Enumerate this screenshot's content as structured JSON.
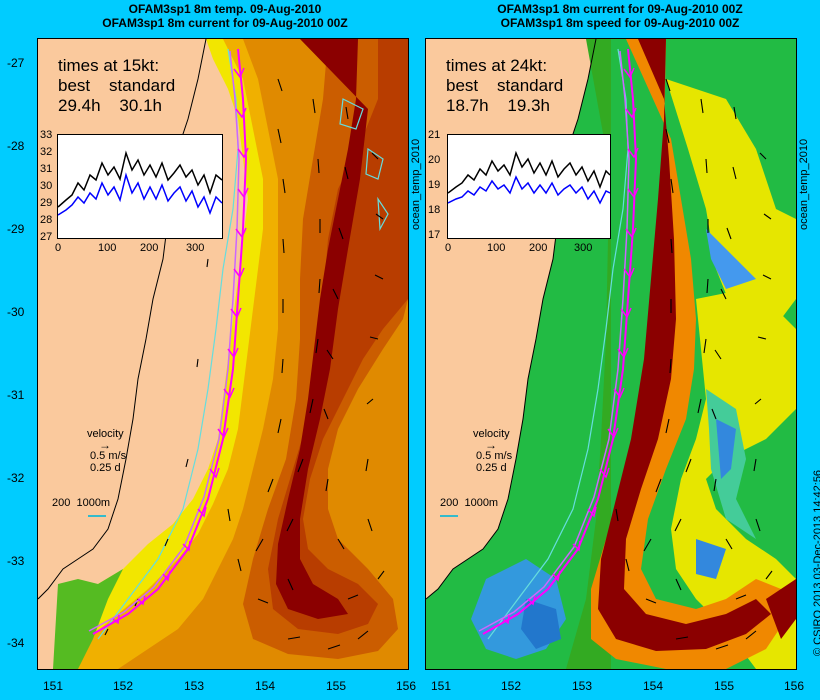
{
  "left_panel": {
    "title_line1": "OFAM3sp1 8m temp. 09-Aug-2010",
    "title_line2": "OFAM3sp1 8m current for 09-Aug-2010 00Z",
    "times_heading": "times at 15kt:",
    "times_header": "best    standard",
    "times_values": "29.4h    30.1h",
    "inset_y_ticks": [
      "33",
      "32",
      "31",
      "30",
      "29",
      "28",
      "27"
    ],
    "inset_x_ticks": [
      "0",
      "100",
      "200",
      "300"
    ],
    "colorbar_label": "ocean_temp_2010",
    "velocity_label": "velocity",
    "velocity_speed": "0.5 m/s",
    "velocity_time": "0.25 d",
    "contour_legend": "200  1000m"
  },
  "right_panel": {
    "title_line1": "OFAM3sp1 8m current for 09-Aug-2010 00Z",
    "title_line2": "OFAM3sp1 8m speed for 09-Aug-2010 00Z",
    "times_heading": "times at 24kt:",
    "times_header": "best    standard",
    "times_values": "18.7h    19.3h",
    "inset_y_ticks": [
      "21",
      "20",
      "19",
      "18",
      "17"
    ],
    "inset_x_ticks": [
      "0",
      "100",
      "200",
      "300"
    ],
    "colorbar_label": "ocean_temp_2010",
    "velocity_label": "velocity",
    "velocity_speed": "0.5 m/s",
    "velocity_time": "0.25 d",
    "contour_legend": "200  1000m"
  },
  "axes": {
    "lat_ticks": [
      "-27",
      "-28",
      "-29",
      "-30",
      "-31",
      "-32",
      "-33",
      "-34"
    ],
    "lon_ticks": [
      "151",
      "152",
      "153",
      "154",
      "155",
      "156"
    ]
  },
  "credit": "© CSIRO 2013  03-Dec-2013 14:42:56",
  "colors": {
    "background": "#00ccff",
    "land": "#f9c89b",
    "route_best": "#ff00ff",
    "route_standard": "#cc66ff",
    "series_best": "#0000ff",
    "series_standard": "#000000"
  }
}
